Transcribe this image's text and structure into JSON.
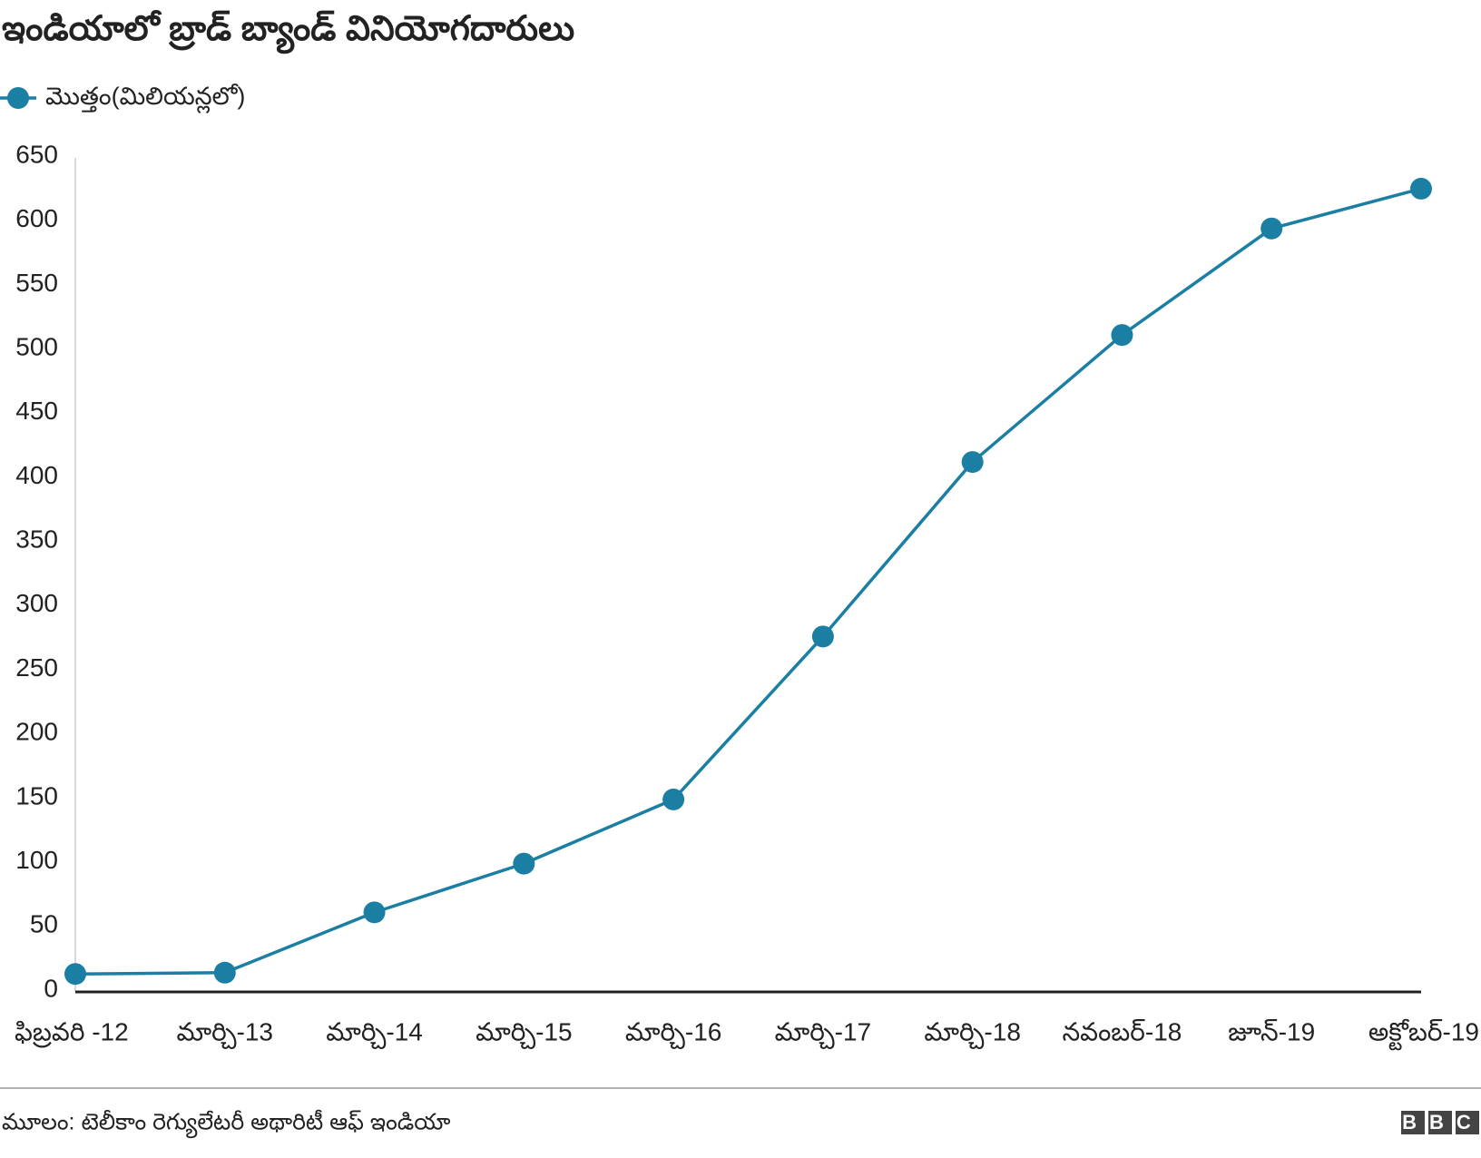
{
  "chart_data": {
    "type": "line",
    "title": "ఇండియాలో బ్రాడ్ బ్యాండ్ వినియోగదారులు",
    "categories": [
      "ఫిబ్రవరి -12",
      "మార్చి-13",
      "మార్చి-14",
      "మార్చి-15",
      "మార్చి-16",
      "మార్చి-17",
      "మార్చి-18",
      "నవంబర్-18",
      "జూన్-19",
      "అక్టోబర్-19"
    ],
    "series": [
      {
        "name": "మొత్తం(మిలియన్లలో)",
        "color": "#1a7fa3",
        "values": [
          14,
          15,
          62,
          100,
          150,
          277,
          413,
          512,
          595,
          626
        ]
      }
    ],
    "ylim": [
      0,
      650
    ],
    "yticks": [
      0,
      50,
      100,
      150,
      200,
      250,
      300,
      350,
      400,
      450,
      500,
      550,
      600,
      650
    ],
    "grid": false,
    "legend": "top-left"
  },
  "source": "మూలం: టెలీకాం రెగ్యులేటరీ అథారిటీ ఆఫ్ ఇండియా",
  "logo": "BBC"
}
